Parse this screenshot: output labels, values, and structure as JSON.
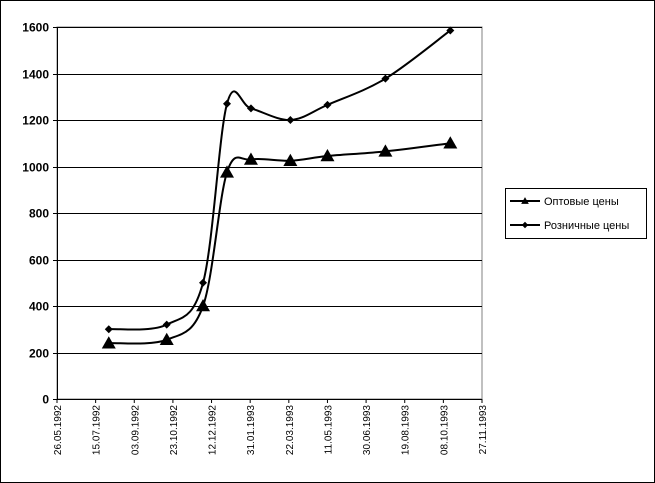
{
  "chart_data": {
    "type": "line",
    "title": "",
    "xlabel": "",
    "ylabel": "",
    "ylim": [
      0,
      1600
    ],
    "yticks": [
      0,
      200,
      400,
      600,
      800,
      1000,
      1200,
      1400,
      1600
    ],
    "xlim": [
      "1992-05-26",
      "1993-11-27"
    ],
    "xticks": [
      "26.05.1992",
      "15.07.1992",
      "03.09.1992",
      "23.10.1992",
      "12.12.1992",
      "31.01.1993",
      "22.03.1993",
      "11.05.1993",
      "30.06.1993",
      "19.08.1993",
      "08.10.1993",
      "27.11.1993"
    ],
    "grid": "horizontal",
    "legend_position": "right",
    "series": [
      {
        "name": "Оптовые цены",
        "marker": "triangle",
        "color": "#000000",
        "points": [
          {
            "x": "1992-08-01",
            "y": 240
          },
          {
            "x": "1992-10-15",
            "y": 255
          },
          {
            "x": "1992-12-01",
            "y": 400
          },
          {
            "x": "1993-01-01",
            "y": 975
          },
          {
            "x": "1993-02-01",
            "y": 1030
          },
          {
            "x": "1993-03-24",
            "y": 1025
          },
          {
            "x": "1993-05-11",
            "y": 1045
          },
          {
            "x": "1993-07-25",
            "y": 1065
          },
          {
            "x": "1993-10-17",
            "y": 1100
          }
        ]
      },
      {
        "name": "Розничные цены",
        "marker": "diamond",
        "color": "#000000",
        "points": [
          {
            "x": "1992-08-01",
            "y": 300
          },
          {
            "x": "1992-10-15",
            "y": 320
          },
          {
            "x": "1992-12-01",
            "y": 500
          },
          {
            "x": "1993-01-01",
            "y": 1270
          },
          {
            "x": "1993-02-01",
            "y": 1250
          },
          {
            "x": "1993-03-24",
            "y": 1200
          },
          {
            "x": "1993-05-11",
            "y": 1265
          },
          {
            "x": "1993-07-25",
            "y": 1378
          },
          {
            "x": "1993-10-17",
            "y": 1585
          }
        ]
      }
    ]
  }
}
